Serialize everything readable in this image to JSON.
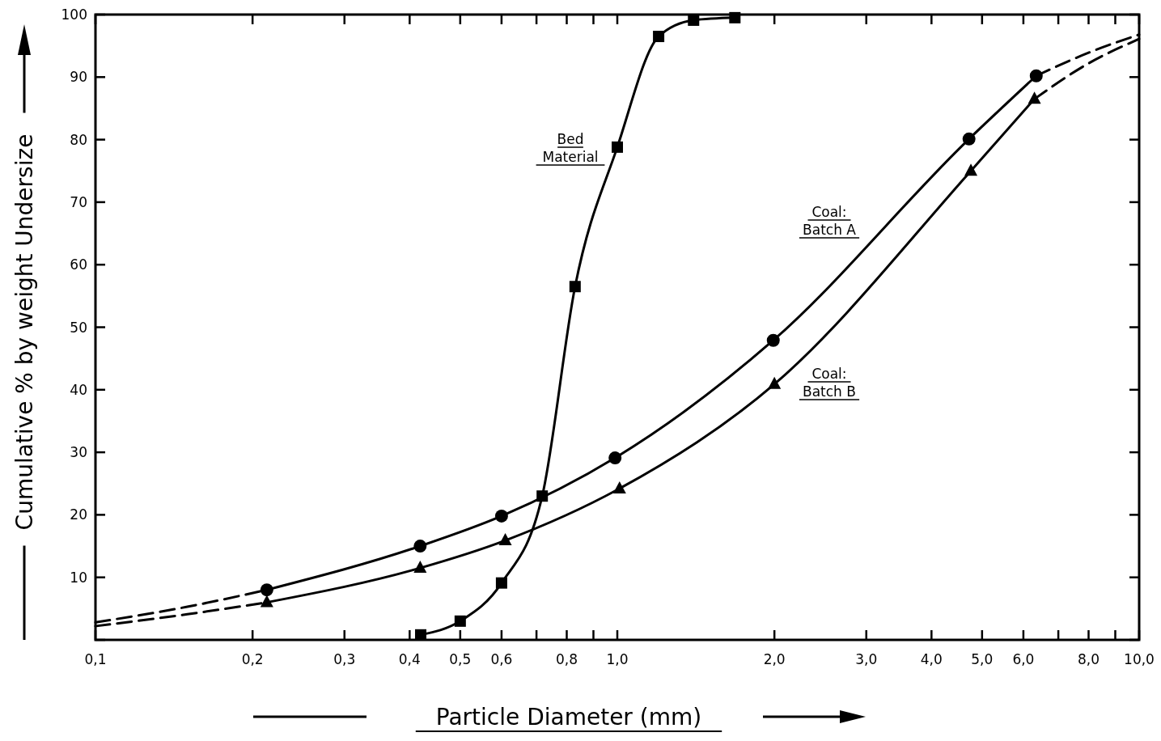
{
  "chart_data": {
    "type": "line",
    "xlabel": "Particle Diameter (mm)",
    "ylabel": "Cumulative % by weight Undersize",
    "log": "x",
    "xlim": [
      0.1,
      10
    ],
    "ylim": [
      0,
      100
    ],
    "xticks": [
      {
        "value": 0.1,
        "label": "0,1"
      },
      {
        "value": 0.2,
        "label": "0,2"
      },
      {
        "value": 0.3,
        "label": "0,3"
      },
      {
        "value": 0.4,
        "label": "0,4"
      },
      {
        "value": 0.5,
        "label": "0,5"
      },
      {
        "value": 0.6,
        "label": "0,6"
      },
      {
        "value": 0.7,
        "label": null
      },
      {
        "value": 0.8,
        "label": "0,8"
      },
      {
        "value": 0.9,
        "label": null
      },
      {
        "value": 1,
        "label": "1,0"
      },
      {
        "value": 2,
        "label": "2,0"
      },
      {
        "value": 3,
        "label": "3,0"
      },
      {
        "value": 4,
        "label": "4,0"
      },
      {
        "value": 5,
        "label": "5,0"
      },
      {
        "value": 6,
        "label": "6,0"
      },
      {
        "value": 7,
        "label": null
      },
      {
        "value": 8,
        "label": "8,0"
      },
      {
        "value": 9,
        "label": null
      },
      {
        "value": 10,
        "label": "10,0"
      }
    ],
    "yticks": [
      {
        "value": 0,
        "label": null
      },
      10,
      20,
      30,
      40,
      50,
      60,
      70,
      80,
      90,
      100
    ],
    "grid": false,
    "series": [
      {
        "color": "#000000",
        "marker": "circle",
        "line_style": "solid",
        "x": [
          0.213,
          0.419,
          0.6,
          0.99,
          1.99,
          4.72,
          6.35
        ],
        "values": [
          8,
          15,
          19.8,
          29.1,
          47.9,
          80.1,
          90.2
        ]
      },
      {
        "color": "#000000",
        "marker": "triangle",
        "line_style": "solid",
        "x": [
          0.213,
          0.419,
          0.61,
          1.01,
          2.0,
          4.76,
          6.3
        ],
        "values": [
          6,
          11.5,
          15.9,
          24.2,
          40.9,
          75,
          86.5
        ]
      },
      {
        "color": "#000000",
        "marker": "square",
        "line_style": "solid",
        "x": [
          0.42,
          0.5,
          0.6,
          0.718,
          0.83,
          1.0,
          1.2,
          1.4,
          1.68
        ],
        "values": [
          0.8,
          3,
          9.1,
          23,
          56.5,
          78.8,
          96.5,
          99.1,
          99.5
        ]
      },
      {
        "color": "#000000",
        "marker": "none",
        "line_style": "dashed",
        "x": [
          0.1,
          0.15,
          0.213
        ],
        "values": [
          2.8,
          5.3,
          8
        ]
      },
      {
        "color": "#000000",
        "marker": "none",
        "line_style": "dashed",
        "x": [
          0.1,
          0.15,
          0.213
        ],
        "values": [
          2.2,
          4.1,
          6
        ]
      },
      {
        "color": "#000000",
        "marker": "none",
        "line_style": "dashed",
        "x": [
          6.35,
          8,
          10
        ],
        "values": [
          90.2,
          93.9,
          96.8
        ]
      },
      {
        "color": "#000000",
        "marker": "none",
        "line_style": "dashed",
        "x": [
          6.3,
          8,
          10
        ],
        "values": [
          86.5,
          92.2,
          96.1
        ]
      }
    ],
    "annotations": [
      "Bed Material",
      "Coal: Batch A",
      "Coal: Batch B"
    ]
  }
}
